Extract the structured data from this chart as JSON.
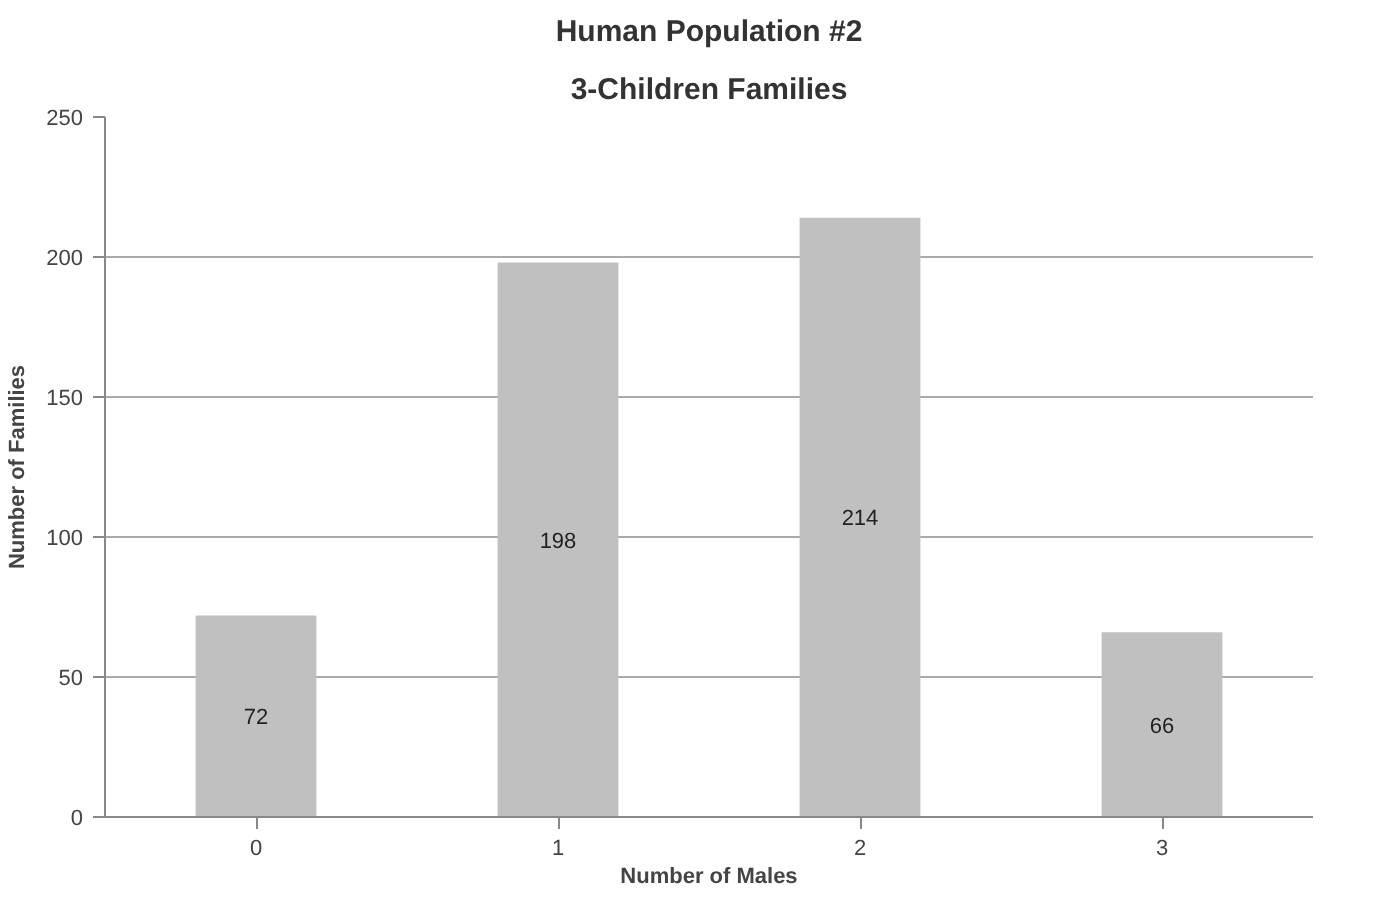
{
  "chart_data": {
    "type": "bar",
    "title": "Human Population #2",
    "subtitle": "3-Children Families",
    "xlabel": "Number of Males",
    "ylabel": "Number of Families",
    "categories": [
      "0",
      "1",
      "2",
      "3"
    ],
    "values": [
      72,
      198,
      214,
      66
    ],
    "color": "#c0c0c0",
    "ylim": [
      0,
      250
    ],
    "yticks": [
      0,
      50,
      100,
      150,
      200,
      250
    ],
    "grid": "y",
    "data_labels": true
  }
}
